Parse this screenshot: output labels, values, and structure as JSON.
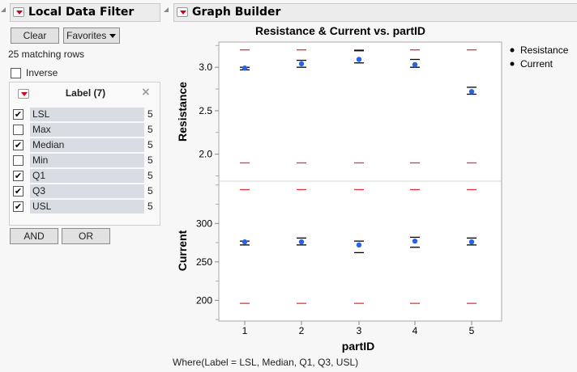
{
  "filter": {
    "title": "Local Data Filter",
    "clear_label": "Clear",
    "favorites_label": "Favorites",
    "matching": "25 matching rows",
    "inverse_label": "Inverse",
    "inverse_checked": false,
    "group_title": "Label (7)",
    "items": [
      {
        "label": "LSL",
        "count": "5",
        "checked": true
      },
      {
        "label": "Max",
        "count": "5",
        "checked": false
      },
      {
        "label": "Median",
        "count": "5",
        "checked": true
      },
      {
        "label": "Min",
        "count": "5",
        "checked": false
      },
      {
        "label": "Q1",
        "count": "5",
        "checked": true
      },
      {
        "label": "Q3",
        "count": "5",
        "checked": true
      },
      {
        "label": "USL",
        "count": "5",
        "checked": true
      }
    ],
    "and_label": "AND",
    "or_label": "OR"
  },
  "graph": {
    "title": "Graph Builder",
    "where": "Where(Label = LSL, Median, Q1, Q3, USL)"
  },
  "chart_data": {
    "type": "scatter",
    "title": "Resistance & Current vs. partID",
    "xlabel": "partID",
    "categories": [
      "1",
      "2",
      "3",
      "4",
      "5"
    ],
    "legend": [
      "Resistance",
      "Current"
    ],
    "legend_position": "right",
    "colors": {
      "spec": "#e8313f",
      "quartile": "#000000",
      "median": "#2563e8"
    },
    "panels": [
      {
        "ylabel": "Resistance",
        "ylim": [
          1.69,
          3.29
        ],
        "ticks": [
          "2.0",
          "2.5",
          "3.0"
        ],
        "tick_values": [
          2.0,
          2.5,
          3.0
        ],
        "minor": [
          1.75,
          2.25,
          2.75,
          3.25
        ],
        "LSL": [
          1.9,
          1.9,
          1.9,
          1.9,
          1.9
        ],
        "USL": [
          3.2,
          3.2,
          3.2,
          3.2,
          3.2
        ],
        "Q1": [
          2.97,
          3.0,
          3.05,
          3.0,
          2.69
        ],
        "Median": [
          2.99,
          3.04,
          3.09,
          3.03,
          2.72
        ],
        "Q3": [
          3.0,
          3.08,
          3.19,
          3.09,
          2.77
        ]
      },
      {
        "ylabel": "Current",
        "ylim": [
          173,
          355
        ],
        "ticks": [
          "200",
          "250",
          "300"
        ],
        "tick_values": [
          200,
          250,
          300
        ],
        "minor": [
          175,
          225,
          275,
          325,
          350
        ],
        "LSL": [
          196,
          196,
          196,
          196,
          196
        ],
        "USL": [
          344,
          344,
          344,
          344,
          344
        ],
        "Q1": [
          272,
          272,
          262,
          269,
          272
        ],
        "Median": [
          276,
          276,
          272,
          277,
          276
        ],
        "Q3": [
          277,
          281,
          277,
          282,
          281
        ]
      }
    ]
  }
}
